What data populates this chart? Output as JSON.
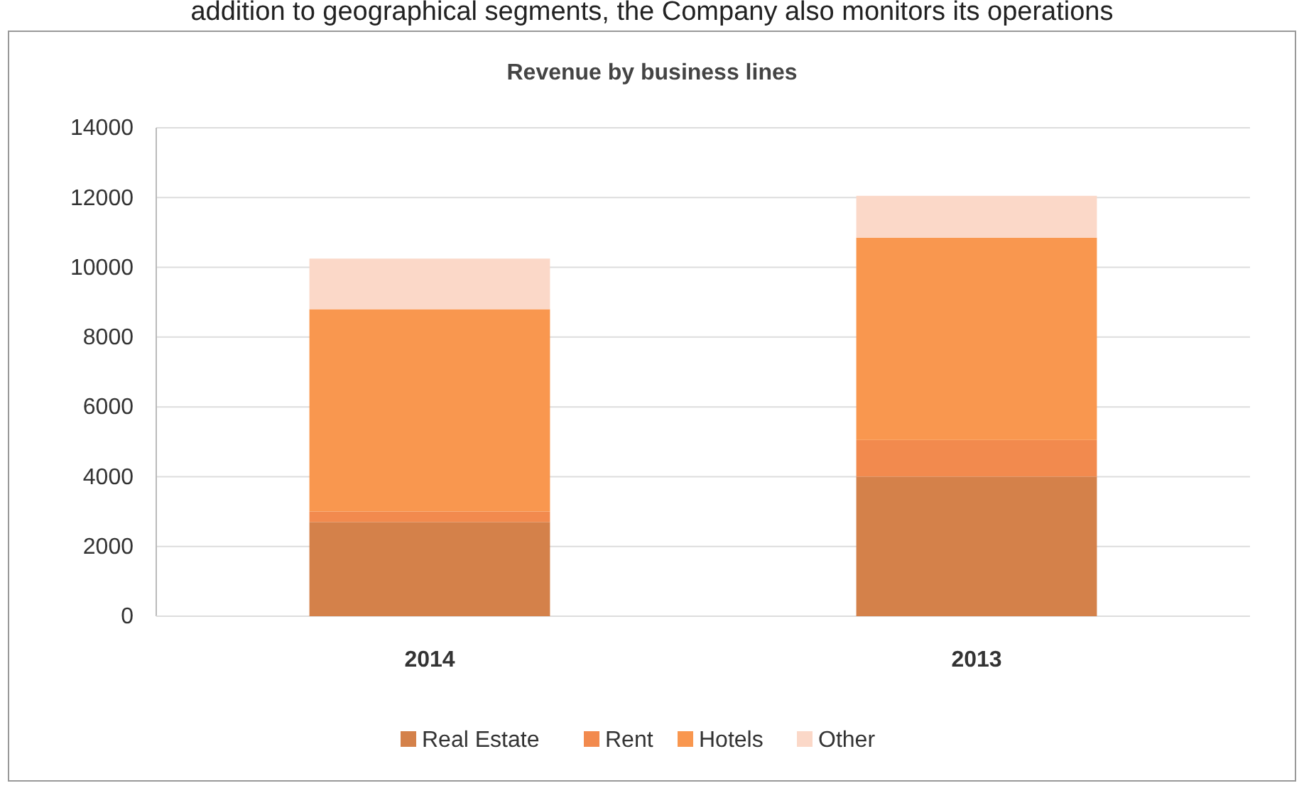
{
  "chart_data": {
    "type": "bar",
    "title": "Revenue by business lines",
    "stacked": true,
    "categories": [
      "2014",
      "2013"
    ],
    "series": [
      {
        "name": "Real Estate",
        "color": "#d4814a",
        "values": [
          2700,
          4000
        ]
      },
      {
        "name": "Rent",
        "color": "#f28a4e",
        "values": [
          300,
          1050
        ]
      },
      {
        "name": "Hotels",
        "color": "#f9974f",
        "values": [
          5800,
          5800
        ]
      },
      {
        "name": "Other",
        "color": "#fbd8c8",
        "values": [
          1450,
          1200
        ]
      }
    ],
    "ylim": [
      0,
      14000
    ],
    "yticks": [
      0,
      2000,
      4000,
      6000,
      8000,
      10000,
      12000,
      14000
    ],
    "grid": "y",
    "legend": "bottom",
    "annotations": [
      "addition to geographical segments, the Company also monitors its operations"
    ]
  }
}
